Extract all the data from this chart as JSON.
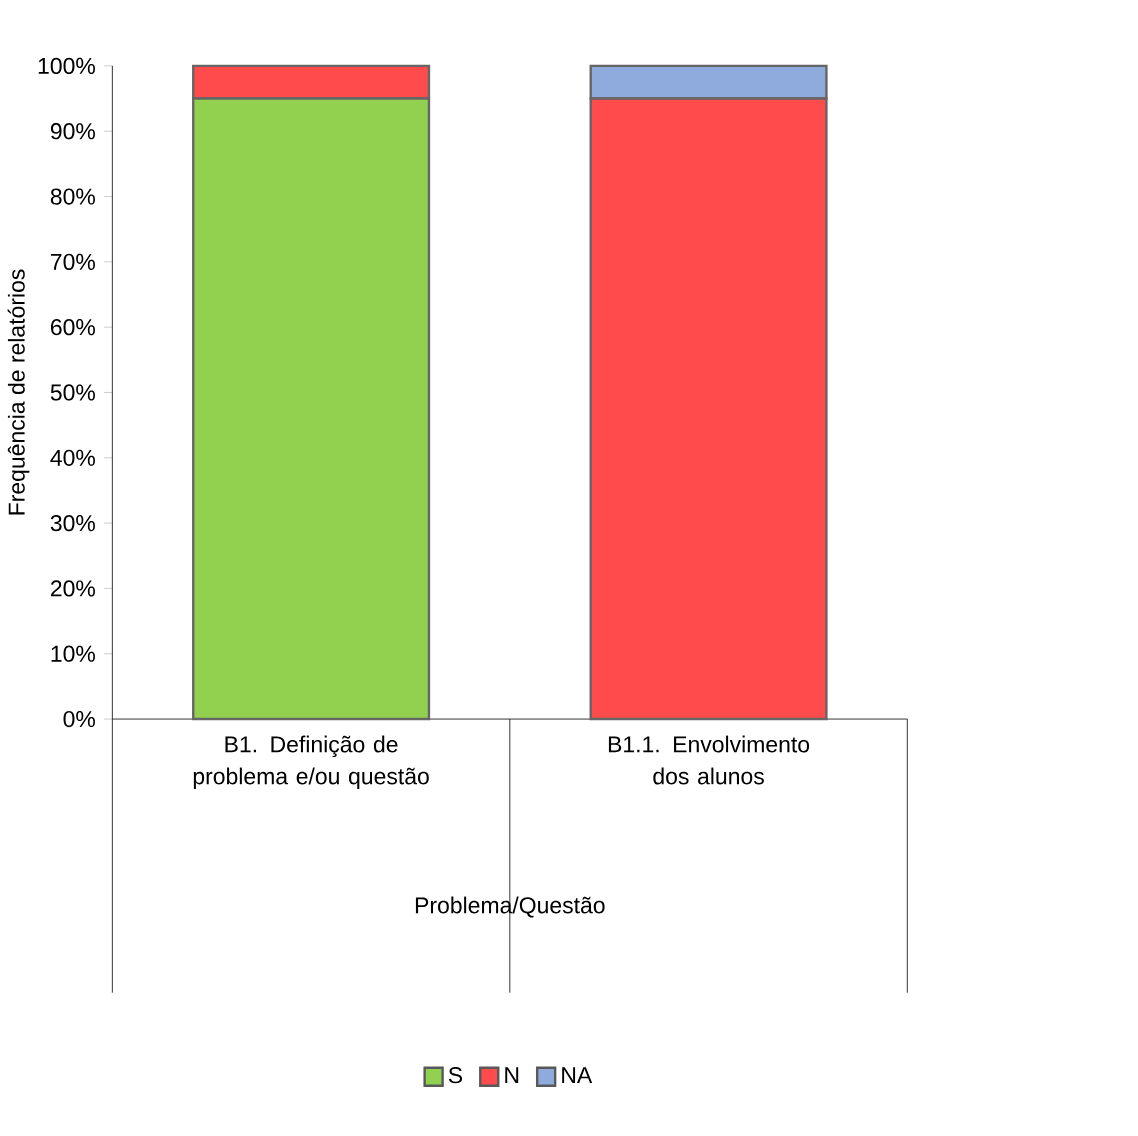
{
  "chart_data": {
    "type": "bar",
    "stacked": true,
    "categories": [
      "B1. Definição de problema e/ou questão",
      "B1.1. Envolvimento dos alunos"
    ],
    "xlabel": "Problema/Questão",
    "ylabel": "Frequência de relatórios",
    "series": [
      {
        "name": "S",
        "color": "#92d050",
        "values": [
          95,
          0
        ]
      },
      {
        "name": "N",
        "color": "#ff4b4b",
        "values": [
          5,
          95
        ]
      },
      {
        "name": "NA",
        "color": "#8faadc",
        "values": [
          0,
          5
        ]
      }
    ],
    "ylim": [
      0,
      100
    ],
    "yticks": [
      {
        "value": 0,
        "label": "0%"
      },
      {
        "value": 10,
        "label": "10%"
      },
      {
        "value": 20,
        "label": "20%"
      },
      {
        "value": 30,
        "label": "30%"
      },
      {
        "value": 40,
        "label": "40%"
      },
      {
        "value": 50,
        "label": "50%"
      },
      {
        "value": 60,
        "label": "60%"
      },
      {
        "value": 70,
        "label": "70%"
      },
      {
        "value": 80,
        "label": "80%"
      },
      {
        "value": 90,
        "label": "90%"
      },
      {
        "value": 100,
        "label": "100%"
      }
    ],
    "grid": false,
    "legend": "bottom"
  }
}
